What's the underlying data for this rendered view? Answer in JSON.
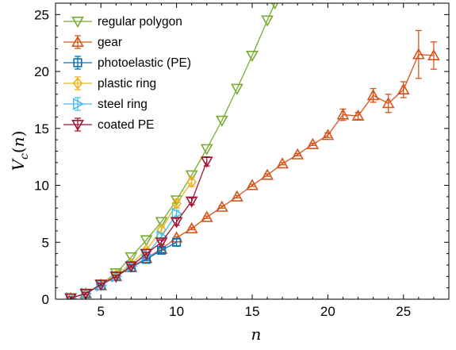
{
  "chart_data": {
    "type": "line",
    "xlabel": "n",
    "ylabel": "V_c(n)",
    "xlim": [
      2,
      28
    ],
    "ylim": [
      0,
      26
    ],
    "xticks": [
      5,
      10,
      15,
      20,
      25
    ],
    "yticks": [
      0,
      5,
      10,
      15,
      20,
      25
    ],
    "legend_position": "top-left",
    "series": [
      {
        "name": "regular polygon",
        "color": "#77AC30",
        "marker": "triangle-down",
        "points": [
          [
            3,
            0.1
          ],
          [
            4,
            0.5
          ],
          [
            5,
            1.3
          ],
          [
            6,
            2.3
          ],
          [
            7,
            3.7
          ],
          [
            8,
            5.2
          ],
          [
            9,
            6.8
          ],
          [
            10,
            8.7
          ],
          [
            11,
            10.9
          ],
          [
            12,
            13.2
          ],
          [
            13,
            15.7
          ],
          [
            14,
            18.5
          ],
          [
            15,
            21.4
          ],
          [
            16,
            24.5
          ],
          [
            16.5,
            26.0
          ]
        ]
      },
      {
        "name": "gear",
        "color": "#D95319",
        "marker": "triangle-up",
        "error_bars": true,
        "points": [
          [
            3,
            0.1
          ],
          [
            4,
            0.5
          ],
          [
            5,
            1.2
          ],
          [
            6,
            2.0
          ],
          [
            7,
            2.8
          ],
          [
            8,
            3.6
          ],
          [
            9,
            4.4
          ],
          [
            10,
            5.4
          ],
          [
            11,
            6.2
          ],
          [
            12,
            7.2
          ],
          [
            13,
            8.1
          ],
          [
            14,
            9.0
          ],
          [
            15,
            10.0
          ],
          [
            16,
            10.9
          ],
          [
            17,
            11.9
          ],
          [
            18,
            12.7
          ],
          [
            19,
            13.6
          ],
          [
            20,
            14.4
          ],
          [
            21,
            16.2
          ],
          [
            22,
            16.1
          ],
          [
            23,
            17.9
          ],
          [
            24,
            17.2
          ],
          [
            25,
            18.4
          ],
          [
            26,
            21.5
          ],
          [
            27,
            21.4
          ]
        ],
        "errors": [
          0.1,
          0.1,
          0.1,
          0.1,
          0.1,
          0.1,
          0.1,
          0.1,
          0.1,
          0.1,
          0.1,
          0.1,
          0.1,
          0.1,
          0.1,
          0.1,
          0.1,
          0.2,
          0.5,
          0.3,
          0.6,
          0.8,
          0.7,
          2.1,
          1.2
        ]
      },
      {
        "name": "photoelastic (PE)",
        "color": "#0072BD",
        "marker": "square",
        "error_bars": true,
        "points": [
          [
            3,
            0.1
          ],
          [
            4,
            0.5
          ],
          [
            5,
            1.2
          ],
          [
            6,
            2.0
          ],
          [
            7,
            2.8
          ],
          [
            8,
            3.5
          ],
          [
            9,
            4.3
          ],
          [
            10,
            5.0
          ]
        ],
        "errors": [
          0.1,
          0.1,
          0.1,
          0.1,
          0.1,
          0.1,
          0.2,
          0.3
        ]
      },
      {
        "name": "plastic ring",
        "color": "#EDB120",
        "marker": "diamond",
        "error_bars": true,
        "points": [
          [
            3,
            0.1
          ],
          [
            4,
            0.5
          ],
          [
            5,
            1.3
          ],
          [
            6,
            2.1
          ],
          [
            7,
            3.1
          ],
          [
            8,
            4.3
          ],
          [
            9,
            6.1
          ],
          [
            10,
            8.4
          ],
          [
            11,
            10.3
          ]
        ],
        "errors": [
          0.1,
          0.1,
          0.1,
          0.1,
          0.1,
          0.2,
          0.3,
          0.4,
          0.4
        ]
      },
      {
        "name": "steel ring",
        "color": "#4DBEEE",
        "marker": "triangle-right",
        "error_bars": true,
        "points": [
          [
            3,
            0.1
          ],
          [
            4,
            0.5
          ],
          [
            5,
            1.2
          ],
          [
            6,
            2.0
          ],
          [
            7,
            2.9
          ],
          [
            8,
            3.9
          ],
          [
            9,
            5.5
          ],
          [
            10,
            7.5
          ]
        ],
        "errors": [
          0.1,
          0.1,
          0.1,
          0.1,
          0.1,
          0.2,
          0.3,
          0.3
        ]
      },
      {
        "name": "coated PE",
        "color": "#A2142F",
        "marker": "triangle-down",
        "error_bars": true,
        "points": [
          [
            3,
            0.1
          ],
          [
            4,
            0.5
          ],
          [
            5,
            1.3
          ],
          [
            6,
            2.0
          ],
          [
            7,
            2.9
          ],
          [
            8,
            4.0
          ],
          [
            9,
            5.0
          ],
          [
            10,
            6.8
          ],
          [
            11,
            8.6
          ],
          [
            12,
            12.1
          ]
        ],
        "errors": [
          0.1,
          0.1,
          0.1,
          0.1,
          0.1,
          0.1,
          0.2,
          0.3,
          0.3,
          0.4
        ]
      }
    ]
  }
}
